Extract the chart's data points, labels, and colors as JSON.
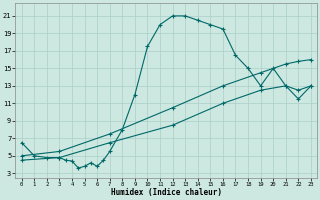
{
  "xlabel": "Humidex (Indice chaleur)",
  "ylabel": "",
  "bg_color": "#cce8e0",
  "grid_color": "#aacfc8",
  "line_color": "#006868",
  "xlim": [
    -0.5,
    23.5
  ],
  "ylim": [
    2.5,
    22.5
  ],
  "xticks": [
    0,
    1,
    2,
    3,
    4,
    5,
    6,
    7,
    8,
    9,
    10,
    11,
    12,
    13,
    14,
    15,
    16,
    17,
    18,
    19,
    20,
    21,
    22,
    23
  ],
  "yticks": [
    3,
    5,
    7,
    9,
    11,
    13,
    15,
    17,
    19,
    21
  ],
  "curve1_x": [
    0,
    1,
    2,
    3,
    3.5,
    4,
    4.5,
    5,
    5.5,
    6,
    6.5,
    7,
    8,
    9,
    10,
    11,
    12,
    13,
    14,
    15,
    16,
    17,
    18,
    19,
    20,
    21,
    22,
    23
  ],
  "curve1_y": [
    6.5,
    5.0,
    4.8,
    4.8,
    4.5,
    4.4,
    3.6,
    3.8,
    4.2,
    3.8,
    4.5,
    5.5,
    8.0,
    12.0,
    17.5,
    20.0,
    21.0,
    21.0,
    20.5,
    20.0,
    19.5,
    16.5,
    15.0,
    13.0,
    15.0,
    13.0,
    11.5,
    13.0
  ],
  "curve2_x": [
    0,
    3,
    7,
    12,
    16,
    19,
    21,
    22,
    23
  ],
  "curve2_y": [
    5.0,
    5.5,
    7.5,
    10.5,
    13.0,
    14.5,
    15.5,
    15.8,
    16.0
  ],
  "curve3_x": [
    0,
    3,
    7,
    12,
    16,
    19,
    21,
    22,
    23
  ],
  "curve3_y": [
    4.5,
    4.8,
    6.5,
    8.5,
    11.0,
    12.5,
    13.0,
    12.5,
    13.0
  ]
}
